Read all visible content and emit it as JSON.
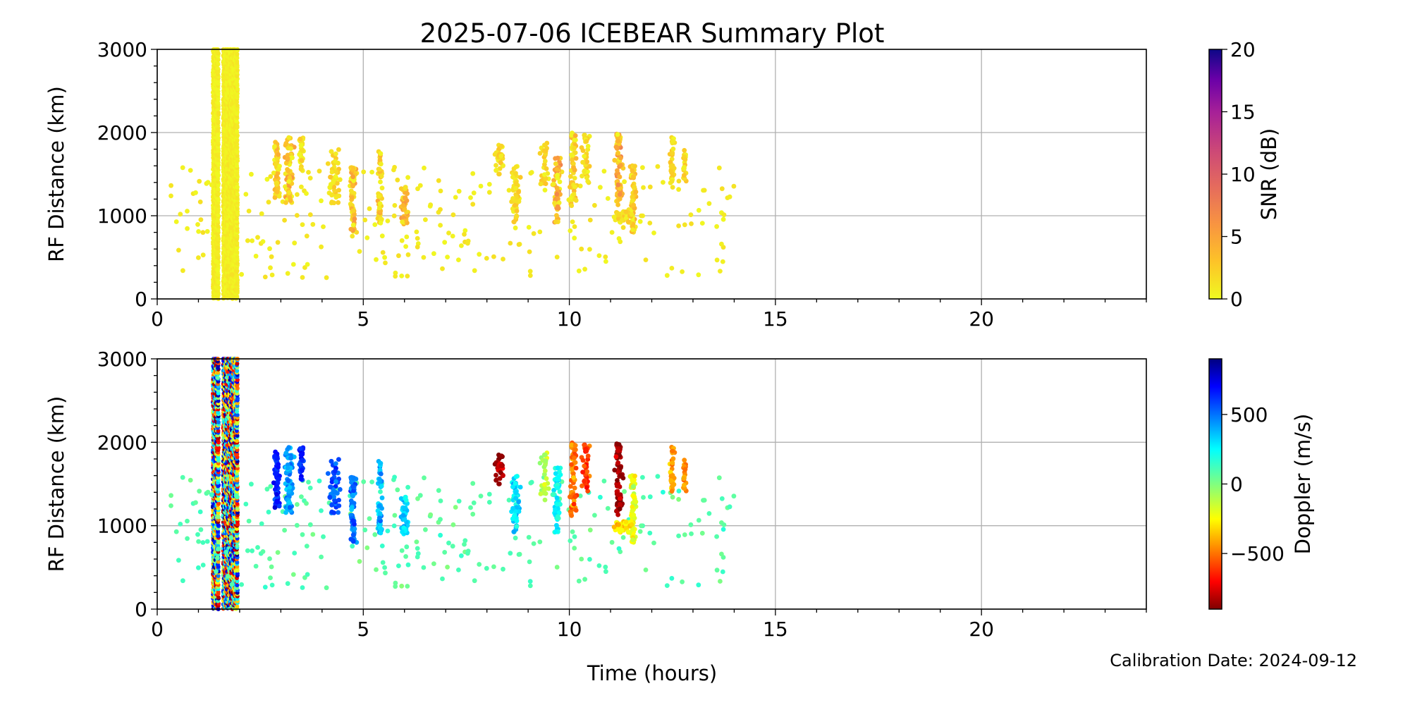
{
  "chart_data": {
    "type": "scatter",
    "title": "2025-07-06 ICEBEAR Summary Plot",
    "xlabel": "Time (hours)",
    "footer": "Calibration Date: 2024-09-12",
    "xlim": [
      0,
      24
    ],
    "xticks": [
      "0",
      "5",
      "10",
      "15",
      "20"
    ],
    "xtick_values": [
      0,
      5,
      10,
      15,
      20
    ],
    "ylim": [
      0,
      3000
    ],
    "yticks": [
      "0",
      "1000",
      "2000",
      "3000"
    ],
    "ytick_values": [
      0,
      1000,
      2000,
      3000
    ],
    "grid": true,
    "panels": [
      {
        "ylabel": "RF Distance (km)",
        "color_by": "snr",
        "colorbar": {
          "label": "SNR (dB)",
          "colormap": "plasma_r",
          "range": [
            0,
            20
          ],
          "ticks": [
            "0",
            "5",
            "10",
            "15",
            "20"
          ],
          "tick_values": [
            0,
            5,
            10,
            15,
            20
          ]
        }
      },
      {
        "ylabel": "RF Distance (km)",
        "color_by": "doppler",
        "colorbar": {
          "label": "Doppler (m/s)",
          "colormap": "jet",
          "range": [
            -900,
            900
          ],
          "ticks": [
            "−500",
            "0",
            "500"
          ],
          "tick_values": [
            -500,
            0,
            500
          ]
        }
      }
    ],
    "noise_bands": [
      {
        "t_start": 1.35,
        "t_end": 1.5,
        "range_km": [
          0,
          3000
        ],
        "snr_db": 0.5,
        "doppler": "random"
      },
      {
        "t_start": 1.6,
        "t_end": 1.95,
        "range_km": [
          0,
          3000
        ],
        "snr_db": 0.5,
        "doppler": "random"
      }
    ],
    "clusters": [
      {
        "t": 2.9,
        "dt": 0.1,
        "range_km": [
          1200,
          1900
        ],
        "count": 60,
        "snr_db": 3,
        "doppler": 650
      },
      {
        "t": 3.2,
        "dt": 0.15,
        "range_km": [
          1150,
          1950
        ],
        "count": 90,
        "snr_db": 4,
        "doppler": 420
      },
      {
        "t": 3.5,
        "dt": 0.08,
        "range_km": [
          1550,
          1950
        ],
        "count": 30,
        "snr_db": 2,
        "doppler": 650
      },
      {
        "t": 4.3,
        "dt": 0.2,
        "range_km": [
          1150,
          1800
        ],
        "count": 50,
        "snr_db": 2,
        "doppler": 550
      },
      {
        "t": 4.75,
        "dt": 0.1,
        "range_km": [
          800,
          1600
        ],
        "count": 70,
        "snr_db": 4,
        "doppler": 500
      },
      {
        "t": 5.4,
        "dt": 0.08,
        "range_km": [
          900,
          1800
        ],
        "count": 50,
        "snr_db": 3,
        "doppler": 400
      },
      {
        "t": 6.0,
        "dt": 0.12,
        "range_km": [
          900,
          1350
        ],
        "count": 50,
        "snr_db": 4,
        "doppler": 330
      },
      {
        "t": 8.3,
        "dt": 0.12,
        "range_km": [
          1500,
          1850
        ],
        "count": 30,
        "snr_db": 2,
        "doppler": -820
      },
      {
        "t": 8.7,
        "dt": 0.15,
        "range_km": [
          900,
          1600
        ],
        "count": 50,
        "snr_db": 2,
        "doppler": 300
      },
      {
        "t": 9.4,
        "dt": 0.15,
        "range_km": [
          1300,
          1900
        ],
        "count": 30,
        "snr_db": 2,
        "doppler": -100
      },
      {
        "t": 9.7,
        "dt": 0.1,
        "range_km": [
          900,
          1700
        ],
        "count": 60,
        "snr_db": 5,
        "doppler": 250
      },
      {
        "t": 10.1,
        "dt": 0.12,
        "range_km": [
          1100,
          2000
        ],
        "count": 60,
        "snr_db": 3,
        "doppler": -500
      },
      {
        "t": 10.4,
        "dt": 0.12,
        "range_km": [
          1400,
          2000
        ],
        "count": 40,
        "snr_db": 2,
        "doppler": -600
      },
      {
        "t": 11.2,
        "dt": 0.12,
        "range_km": [
          1100,
          2000
        ],
        "count": 70,
        "snr_db": 5,
        "doppler": -850
      },
      {
        "t": 11.55,
        "dt": 0.1,
        "range_km": [
          800,
          1600
        ],
        "count": 60,
        "snr_db": 3,
        "doppler": -200
      },
      {
        "t": 11.3,
        "dt": 0.3,
        "range_km": [
          900,
          1050
        ],
        "count": 40,
        "snr_db": 2,
        "doppler": -300
      },
      {
        "t": 12.5,
        "dt": 0.08,
        "range_km": [
          1400,
          2000
        ],
        "count": 30,
        "snr_db": 2,
        "doppler": -400
      },
      {
        "t": 12.8,
        "dt": 0.06,
        "range_km": [
          1400,
          1800
        ],
        "count": 20,
        "snr_db": 2,
        "doppler": -450
      }
    ],
    "scattered": {
      "t_range": [
        0.3,
        14
      ],
      "range_km": [
        250,
        1600
      ],
      "count": 260,
      "snr_db": 1.5,
      "doppler": 80
    }
  }
}
